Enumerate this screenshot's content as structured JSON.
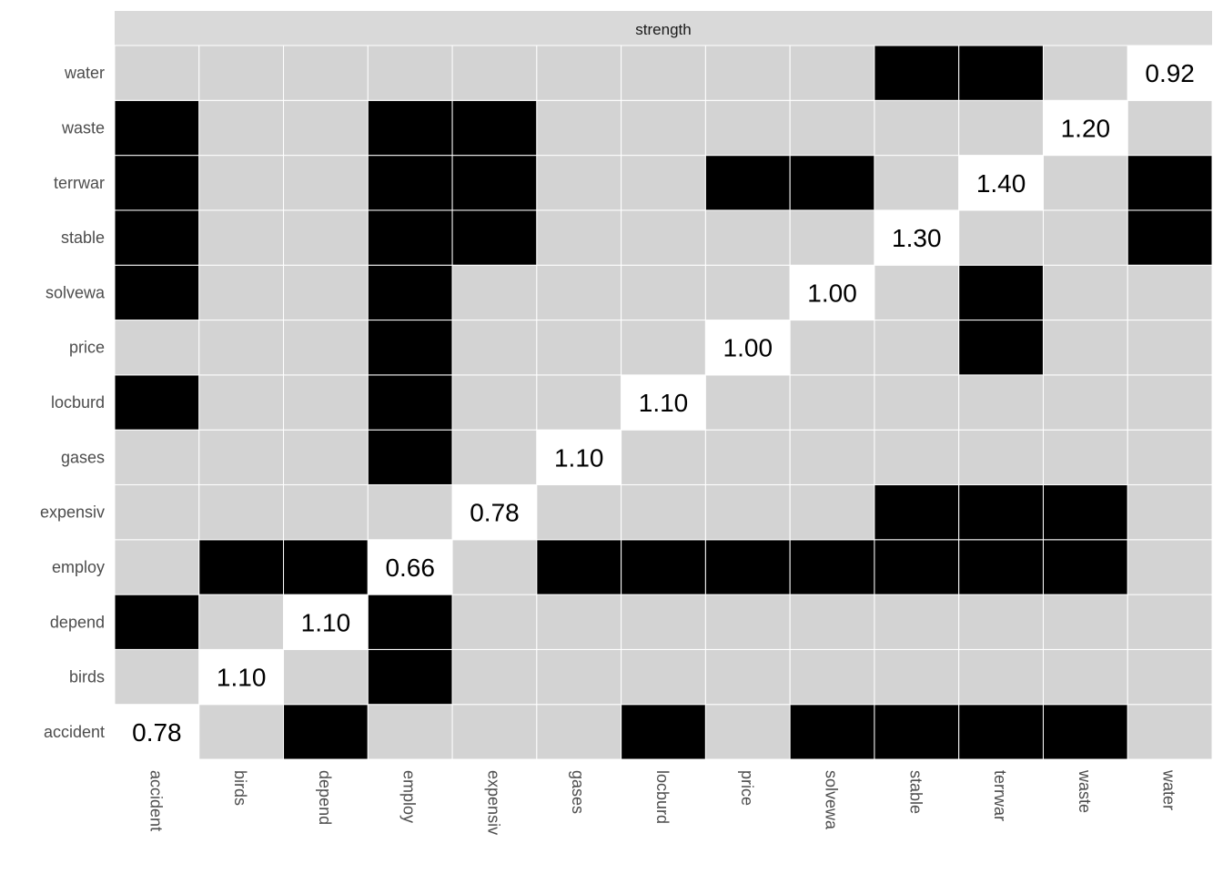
{
  "chart_data": {
    "type": "heatmap",
    "strip_title": "strength",
    "x_categories": [
      "accident",
      "birds",
      "depend",
      "employ",
      "expensiv",
      "gases",
      "locburd",
      "price",
      "solvewa",
      "stable",
      "terrwar",
      "waste",
      "water"
    ],
    "y_categories": [
      "accident",
      "birds",
      "depend",
      "employ",
      "expensiv",
      "gases",
      "locburd",
      "price",
      "solvewa",
      "stable",
      "terrwar",
      "waste",
      "water"
    ],
    "diagonal": [
      {
        "var": "accident",
        "label": "0.78"
      },
      {
        "var": "birds",
        "label": "1.10"
      },
      {
        "var": "depend",
        "label": "1.10"
      },
      {
        "var": "employ",
        "label": "0.66"
      },
      {
        "var": "expensiv",
        "label": "0.78"
      },
      {
        "var": "gases",
        "label": "1.10"
      },
      {
        "var": "locburd",
        "label": "1.10"
      },
      {
        "var": "price",
        "label": "1.00"
      },
      {
        "var": "solvewa",
        "label": "1.00"
      },
      {
        "var": "stable",
        "label": "1.30"
      },
      {
        "var": "terrwar",
        "label": "1.40"
      },
      {
        "var": "waste",
        "label": "1.20"
      },
      {
        "var": "water",
        "label": "0.92"
      }
    ],
    "matrix": {
      "water": [
        0,
        0,
        0,
        0,
        0,
        0,
        0,
        0,
        0,
        1,
        1,
        0,
        0
      ],
      "waste": [
        1,
        0,
        0,
        1,
        1,
        0,
        0,
        0,
        0,
        0,
        0,
        0,
        0
      ],
      "terrwar": [
        1,
        0,
        0,
        1,
        1,
        0,
        0,
        1,
        1,
        0,
        0,
        0,
        1
      ],
      "stable": [
        1,
        0,
        0,
        1,
        1,
        0,
        0,
        0,
        0,
        0,
        0,
        0,
        1
      ],
      "solvewa": [
        1,
        0,
        0,
        1,
        0,
        0,
        0,
        0,
        0,
        0,
        1,
        0,
        0
      ],
      "price": [
        0,
        0,
        0,
        1,
        0,
        0,
        0,
        0,
        0,
        0,
        1,
        0,
        0
      ],
      "locburd": [
        1,
        0,
        0,
        1,
        0,
        0,
        0,
        0,
        0,
        0,
        0,
        0,
        0
      ],
      "gases": [
        0,
        0,
        0,
        1,
        0,
        0,
        0,
        0,
        0,
        0,
        0,
        0,
        0
      ],
      "expensiv": [
        0,
        0,
        0,
        0,
        0,
        0,
        0,
        0,
        0,
        1,
        1,
        1,
        0
      ],
      "employ": [
        0,
        1,
        1,
        0,
        0,
        1,
        1,
        1,
        1,
        1,
        1,
        1,
        0
      ],
      "depend": [
        1,
        0,
        0,
        1,
        0,
        0,
        0,
        0,
        0,
        0,
        0,
        0,
        0
      ],
      "birds": [
        0,
        0,
        0,
        1,
        0,
        0,
        0,
        0,
        0,
        0,
        0,
        0,
        0
      ],
      "accident": [
        0,
        0,
        1,
        0,
        0,
        0,
        1,
        0,
        1,
        1,
        1,
        1,
        0
      ]
    },
    "colors": {
      "background": "#d3d3d3",
      "present": "#000000",
      "diagonal": "#ffffff",
      "strip": "#d9d9d9",
      "grid": "#ffffff"
    }
  }
}
